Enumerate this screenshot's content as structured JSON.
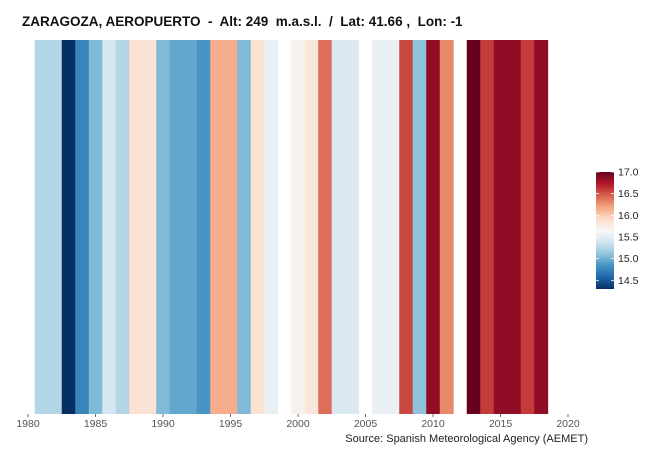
{
  "chart_data": {
    "type": "heatmap",
    "title": "ZARAGOZA, AEROPUERTO  -  Alt: 249  m.a.s.l.  /  Lat: 41.66 ,  Lon: -1",
    "caption": "Source: Spanish Meteorological Agency (AEMET)",
    "xlim": [
      1980,
      2020
    ],
    "x_ticks": [
      "1980",
      "1985",
      "1990",
      "1995",
      "2000",
      "2005",
      "2010",
      "2015",
      "2020"
    ],
    "legend": {
      "placement": "right",
      "range": [
        14.3,
        17.0
      ],
      "ticks": [
        "14.5",
        "15.0",
        "15.5",
        "16.0",
        "16.5",
        "17.0"
      ]
    },
    "colors": {
      "scale": [
        "#053061",
        "#2166ac",
        "#4393c3",
        "#92c5de",
        "#d1e5f0",
        "#f7f7f7",
        "#fddbc7",
        "#f4a582",
        "#d6604d",
        "#b2182b",
        "#67001f"
      ]
    },
    "years": [
      1981,
      1982,
      1983,
      1984,
      1985,
      1986,
      1987,
      1988,
      1989,
      1990,
      1991,
      1992,
      1993,
      1994,
      1995,
      1996,
      1997,
      1998,
      1999,
      2000,
      2001,
      2002,
      2003,
      2004,
      2005,
      2006,
      2007,
      2008,
      2009,
      2010,
      2011,
      2012,
      2013,
      2014,
      2015,
      2016,
      2017,
      2018,
      2019
    ],
    "values": [
      15.25,
      15.25,
      14.3,
      14.75,
      15.05,
      15.4,
      15.25,
      15.85,
      15.85,
      15.05,
      14.95,
      14.95,
      14.85,
      16.15,
      16.15,
      15.05,
      15.85,
      15.55,
      null,
      15.7,
      15.8,
      16.4,
      15.45,
      15.45,
      null,
      15.55,
      15.55,
      16.55,
      15.1,
      16.85,
      16.3,
      null,
      17.0,
      16.6,
      16.85,
      16.85,
      16.6,
      16.85,
      null
    ]
  }
}
